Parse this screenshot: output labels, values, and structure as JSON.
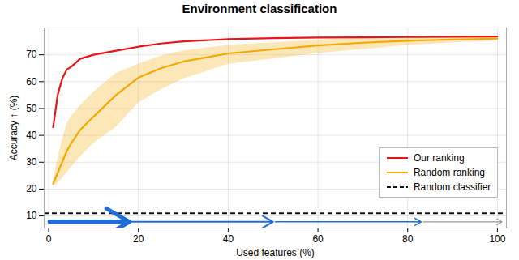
{
  "chart_data": {
    "type": "line",
    "title": "Environment classification",
    "xlabel": "Used features (%)",
    "ylabel": "Accuracy ↑ (%)",
    "xlim": [
      -1,
      102
    ],
    "ylim": [
      5.5,
      80
    ],
    "xticks": [
      0,
      20,
      40,
      60,
      80,
      100
    ],
    "yticks": [
      10,
      20,
      30,
      40,
      50,
      60,
      70
    ],
    "grid": true,
    "legend": "lower right",
    "x": [
      1,
      2,
      3,
      4,
      5,
      7,
      10,
      15,
      20,
      25,
      30,
      40,
      50,
      60,
      70,
      80,
      90,
      100
    ],
    "series": [
      {
        "name": "Our ranking",
        "color": "#e8141c",
        "values": [
          43,
          55,
          61,
          64.5,
          65.5,
          68.5,
          70,
          71.5,
          73,
          74.2,
          75.0,
          75.8,
          76.2,
          76.4,
          76.5,
          76.6,
          76.7,
          76.8
        ]
      },
      {
        "name": "Random ranking",
        "color": "#f5a800",
        "values": [
          22,
          26,
          30,
          34,
          37,
          42,
          47,
          55,
          61.5,
          65,
          67.5,
          70.5,
          72.0,
          73.5,
          74.5,
          75.2,
          75.7,
          76.0
        ],
        "lower": [
          21,
          22,
          24,
          26,
          28,
          32,
          37,
          43,
          52,
          57,
          61,
          66.5,
          68.5,
          70.5,
          72.0,
          73.5,
          74.5,
          75.2
        ],
        "upper": [
          23,
          31,
          38,
          44,
          47,
          51,
          56,
          63,
          66.5,
          69.5,
          71.5,
          73.5,
          74.5,
          75.5,
          76.2,
          76.4,
          76.5,
          76.6
        ]
      },
      {
        "name": "Random classifier",
        "color": "#111111",
        "type": "hline",
        "line_style": "dashed",
        "y": 11.0
      }
    ],
    "arrows": [
      {
        "x1": 0.2,
        "x2": 18,
        "y": 7.8,
        "color": "#1f6ddb"
      },
      {
        "x1": 18.5,
        "x2": 50,
        "y": 7.8,
        "color": "#1f6ddb"
      },
      {
        "x1": 50.5,
        "x2": 83,
        "y": 7.8,
        "color": "#1f6ddb"
      },
      {
        "x1": 83.5,
        "x2": 101,
        "y": 7.8,
        "color": "#999999"
      }
    ]
  }
}
